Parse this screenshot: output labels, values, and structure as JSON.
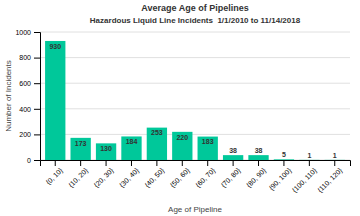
{
  "chart_data": {
    "type": "bar",
    "title": "Average Age of Pipelines",
    "subtitle": "Hazardous Liquid Line Incidents  1/1/2010 to 11/14/2018",
    "categories": [
      "{0, 10}",
      "{10, 20}",
      "{20, 30}",
      "{30, 40}",
      "{40, 50}",
      "{50, 60}",
      "{60, 70}",
      "{70, 80}",
      "{80, 90}",
      "{90, 100}",
      "{100, 110}",
      "{110, 120}"
    ],
    "values": [
      930,
      173,
      130,
      184,
      253,
      220,
      183,
      38,
      38,
      5,
      1,
      1
    ],
    "color": "#00C89A",
    "xlabel": "Age of Pipeline",
    "ylabel": "Number of Incidents",
    "ylim": [
      0,
      1000
    ],
    "yticks": [
      0,
      200,
      400,
      600,
      800,
      1000
    ],
    "grid": true,
    "data_labels": true
  }
}
